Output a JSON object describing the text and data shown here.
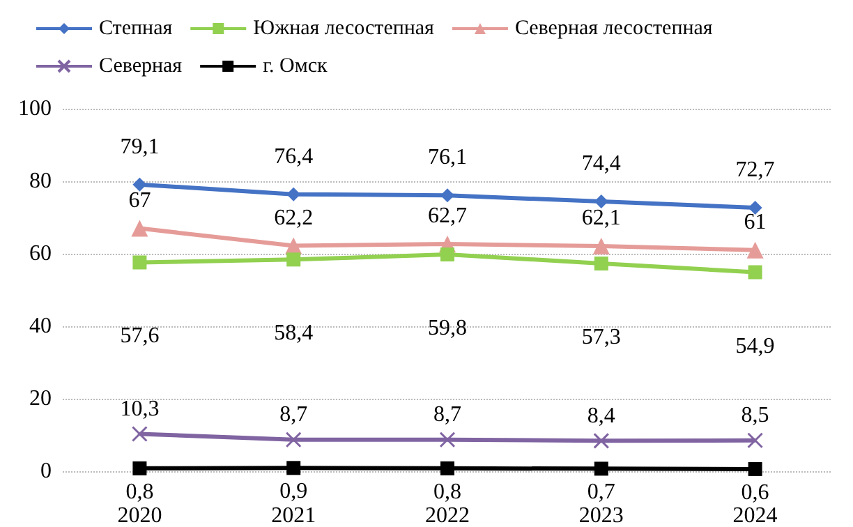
{
  "chart_data": {
    "type": "line",
    "categories": [
      "2020",
      "2021",
      "2022",
      "2023",
      "2024"
    ],
    "series": [
      {
        "name": "Степная",
        "color": "#4472c4",
        "marker": "diamond",
        "values": [
          79.1,
          76.4,
          76.1,
          74.4,
          72.7
        ],
        "value_labels": [
          "79,1",
          "76,4",
          "76,1",
          "74,4",
          "72,7"
        ]
      },
      {
        "name": "Южная лесостепная",
        "color": "#92d050",
        "marker": "square",
        "values": [
          57.6,
          58.4,
          59.8,
          57.3,
          54.9
        ],
        "value_labels": [
          "57,6",
          "58,4",
          "59,8",
          "57,3",
          "54,9"
        ]
      },
      {
        "name": "Северная лесостепная",
        "color": "#e59c98",
        "marker": "triangle",
        "values": [
          67,
          62.2,
          62.7,
          62.1,
          61
        ],
        "value_labels": [
          "67",
          "62,2",
          "62,7",
          "62,1",
          "61"
        ]
      },
      {
        "name": "Северная",
        "color": "#8064a2",
        "marker": "cross",
        "values": [
          10.3,
          8.7,
          8.7,
          8.4,
          8.5
        ],
        "value_labels": [
          "10,3",
          "8,7",
          "8,7",
          "8,4",
          "8,5"
        ]
      },
      {
        "name": "г. Омск",
        "color": "#000000",
        "marker": "square",
        "values": [
          0.8,
          0.9,
          0.8,
          0.7,
          0.6
        ],
        "value_labels": [
          "0,8",
          "0,9",
          "0,8",
          "0,7",
          "0,6"
        ]
      }
    ],
    "ylim": [
      0,
      100
    ],
    "yticks": [
      0,
      20,
      40,
      60,
      80,
      100
    ],
    "grid": "y",
    "legend": "top",
    "line_style": "solid"
  }
}
